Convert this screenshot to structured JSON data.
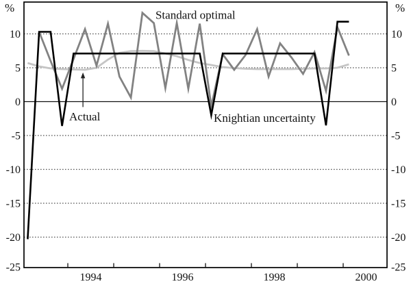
{
  "chart_data": {
    "type": "line",
    "title": "",
    "unit_label": "%",
    "x_axis": {
      "tick_mark_years": [
        1994,
        1995,
        1996,
        1997,
        1998,
        1999,
        2000
      ],
      "tick_label_years": [
        1994,
        1996,
        1998,
        2000
      ]
    },
    "y_axis": {
      "ticks": [
        10,
        5,
        0,
        -5,
        -10,
        -15,
        -20,
        -25
      ],
      "range_shown": [
        -25,
        14.8
      ],
      "zero_line": "solid",
      "gridlines": "dotted",
      "labels_on_both_sides": true
    },
    "x_categories_quarters": [
      "1993Q1",
      "1993Q2",
      "1993Q3",
      "1993Q4",
      "1994Q1",
      "1994Q2",
      "1994Q3",
      "1994Q4",
      "1995Q1",
      "1995Q2",
      "1995Q3",
      "1995Q4",
      "1996Q1",
      "1996Q2",
      "1996Q3",
      "1996Q4",
      "1997Q1",
      "1997Q2",
      "1997Q3",
      "1997Q4",
      "1998Q1",
      "1998Q2",
      "1998Q3",
      "1998Q4",
      "1999Q1",
      "1999Q2",
      "1999Q3",
      "1999Q4",
      "2000Q1"
    ],
    "series": [
      {
        "name": "Actual",
        "color": "#c5c5c5",
        "values": [
          5.7,
          5.2,
          4.9,
          4.8,
          4.75,
          4.7,
          5.0,
          6.2,
          7.2,
          7.45,
          7.5,
          7.45,
          7.1,
          6.7,
          6.15,
          5.7,
          5.4,
          5.1,
          4.95,
          4.85,
          4.8,
          4.8,
          4.8,
          4.8,
          4.85,
          4.9,
          4.9,
          5.0,
          5.5
        ]
      },
      {
        "name": "Standard optimal",
        "color": "#828282",
        "values": [
          null,
          10.3,
          6.0,
          1.9,
          6.3,
          10.7,
          5.3,
          11.5,
          3.7,
          0.6,
          13.1,
          11.6,
          2.0,
          11.6,
          1.9,
          11.5,
          -0.7,
          7.0,
          4.7,
          6.9,
          10.7,
          3.7,
          8.6,
          6.5,
          4.1,
          7.3,
          1.6,
          11.0,
          6.8
        ]
      },
      {
        "name": "Knightian uncertainty",
        "color": "#000000",
        "values": [
          -20.3,
          10.3,
          10.3,
          -3.6,
          7.1,
          7.1,
          7.1,
          7.1,
          7.1,
          7.1,
          7.1,
          7.1,
          7.1,
          7.1,
          7.1,
          7.1,
          -2.0,
          7.1,
          7.1,
          7.1,
          7.1,
          7.1,
          7.1,
          7.1,
          7.1,
          7.1,
          -3.5,
          11.8,
          11.8
        ]
      }
    ],
    "annotations": [
      {
        "text": "Standard optimal",
        "year": 1995.91,
        "value": 12.2
      },
      {
        "text": "Actual",
        "year": 1994.03,
        "value": -2.8
      },
      {
        "text": "Knightian uncertainty",
        "year": 1997.18,
        "value": -3.0
      }
    ],
    "arrow": {
      "year": 1994.33,
      "from_value": -0.8,
      "to_value": 4.3,
      "points_to_series": "Actual"
    }
  }
}
